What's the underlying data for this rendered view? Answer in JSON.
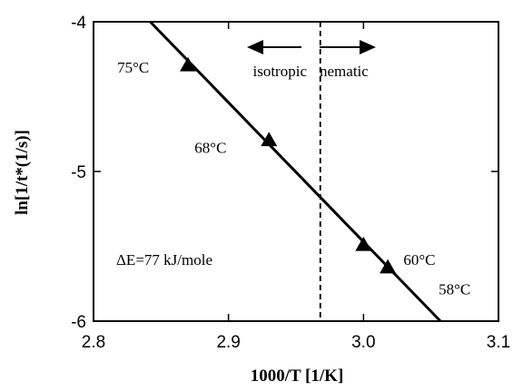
{
  "chart_data": {
    "type": "scatter",
    "xlabel": "1000/T  [1/K]",
    "ylabel": "ln[1/t*(1/s)]",
    "xlim": [
      2.8,
      3.1
    ],
    "ylim": [
      -6,
      -4
    ],
    "xticks": [
      2.8,
      2.9,
      3.0,
      3.1
    ],
    "xtick_labels": [
      "2.8",
      "2.9",
      "3.0",
      "3.1"
    ],
    "yticks": [
      -6,
      -5,
      -4
    ],
    "ytick_labels": [
      "-6",
      "-5",
      "-4"
    ],
    "grid": false,
    "points": [
      {
        "x": 2.87,
        "y": -4.29,
        "label": "75°C"
      },
      {
        "x": 2.93,
        "y": -4.79,
        "label": "68°C"
      },
      {
        "x": 3.0,
        "y": -5.49,
        "label": "60°C"
      },
      {
        "x": 3.018,
        "y": -5.64,
        "label": "58°C"
      }
    ],
    "fit_line": {
      "x": [
        2.842,
        3.057
      ],
      "y": [
        -4.0,
        -6.0
      ]
    },
    "transition_x": 2.968,
    "annotations": {
      "isotropic": "isotropic",
      "nematic": "nematic",
      "energy": "ΔE=77 kJ/mole"
    }
  }
}
